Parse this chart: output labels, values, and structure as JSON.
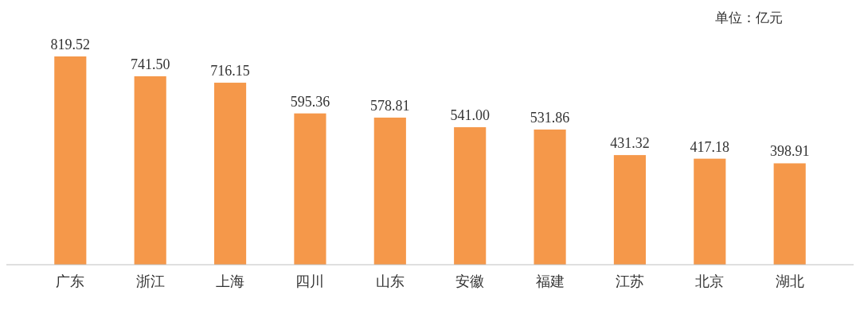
{
  "chart_data": {
    "type": "bar",
    "categories": [
      "广东",
      "浙江",
      "上海",
      "四川",
      "山东",
      "安徽",
      "福建",
      "江苏",
      "北京",
      "湖北"
    ],
    "values": [
      819.52,
      741.5,
      716.15,
      595.36,
      578.81,
      541.0,
      531.86,
      431.32,
      417.18,
      398.91
    ],
    "value_labels": [
      "819.52",
      "741.50",
      "716.15",
      "595.36",
      "578.81",
      "541.00",
      "531.86",
      "431.32",
      "417.18",
      "398.91"
    ],
    "color": "#f5984a",
    "tick_labels": "x",
    "annotations": [
      "单位：亿元"
    ]
  }
}
